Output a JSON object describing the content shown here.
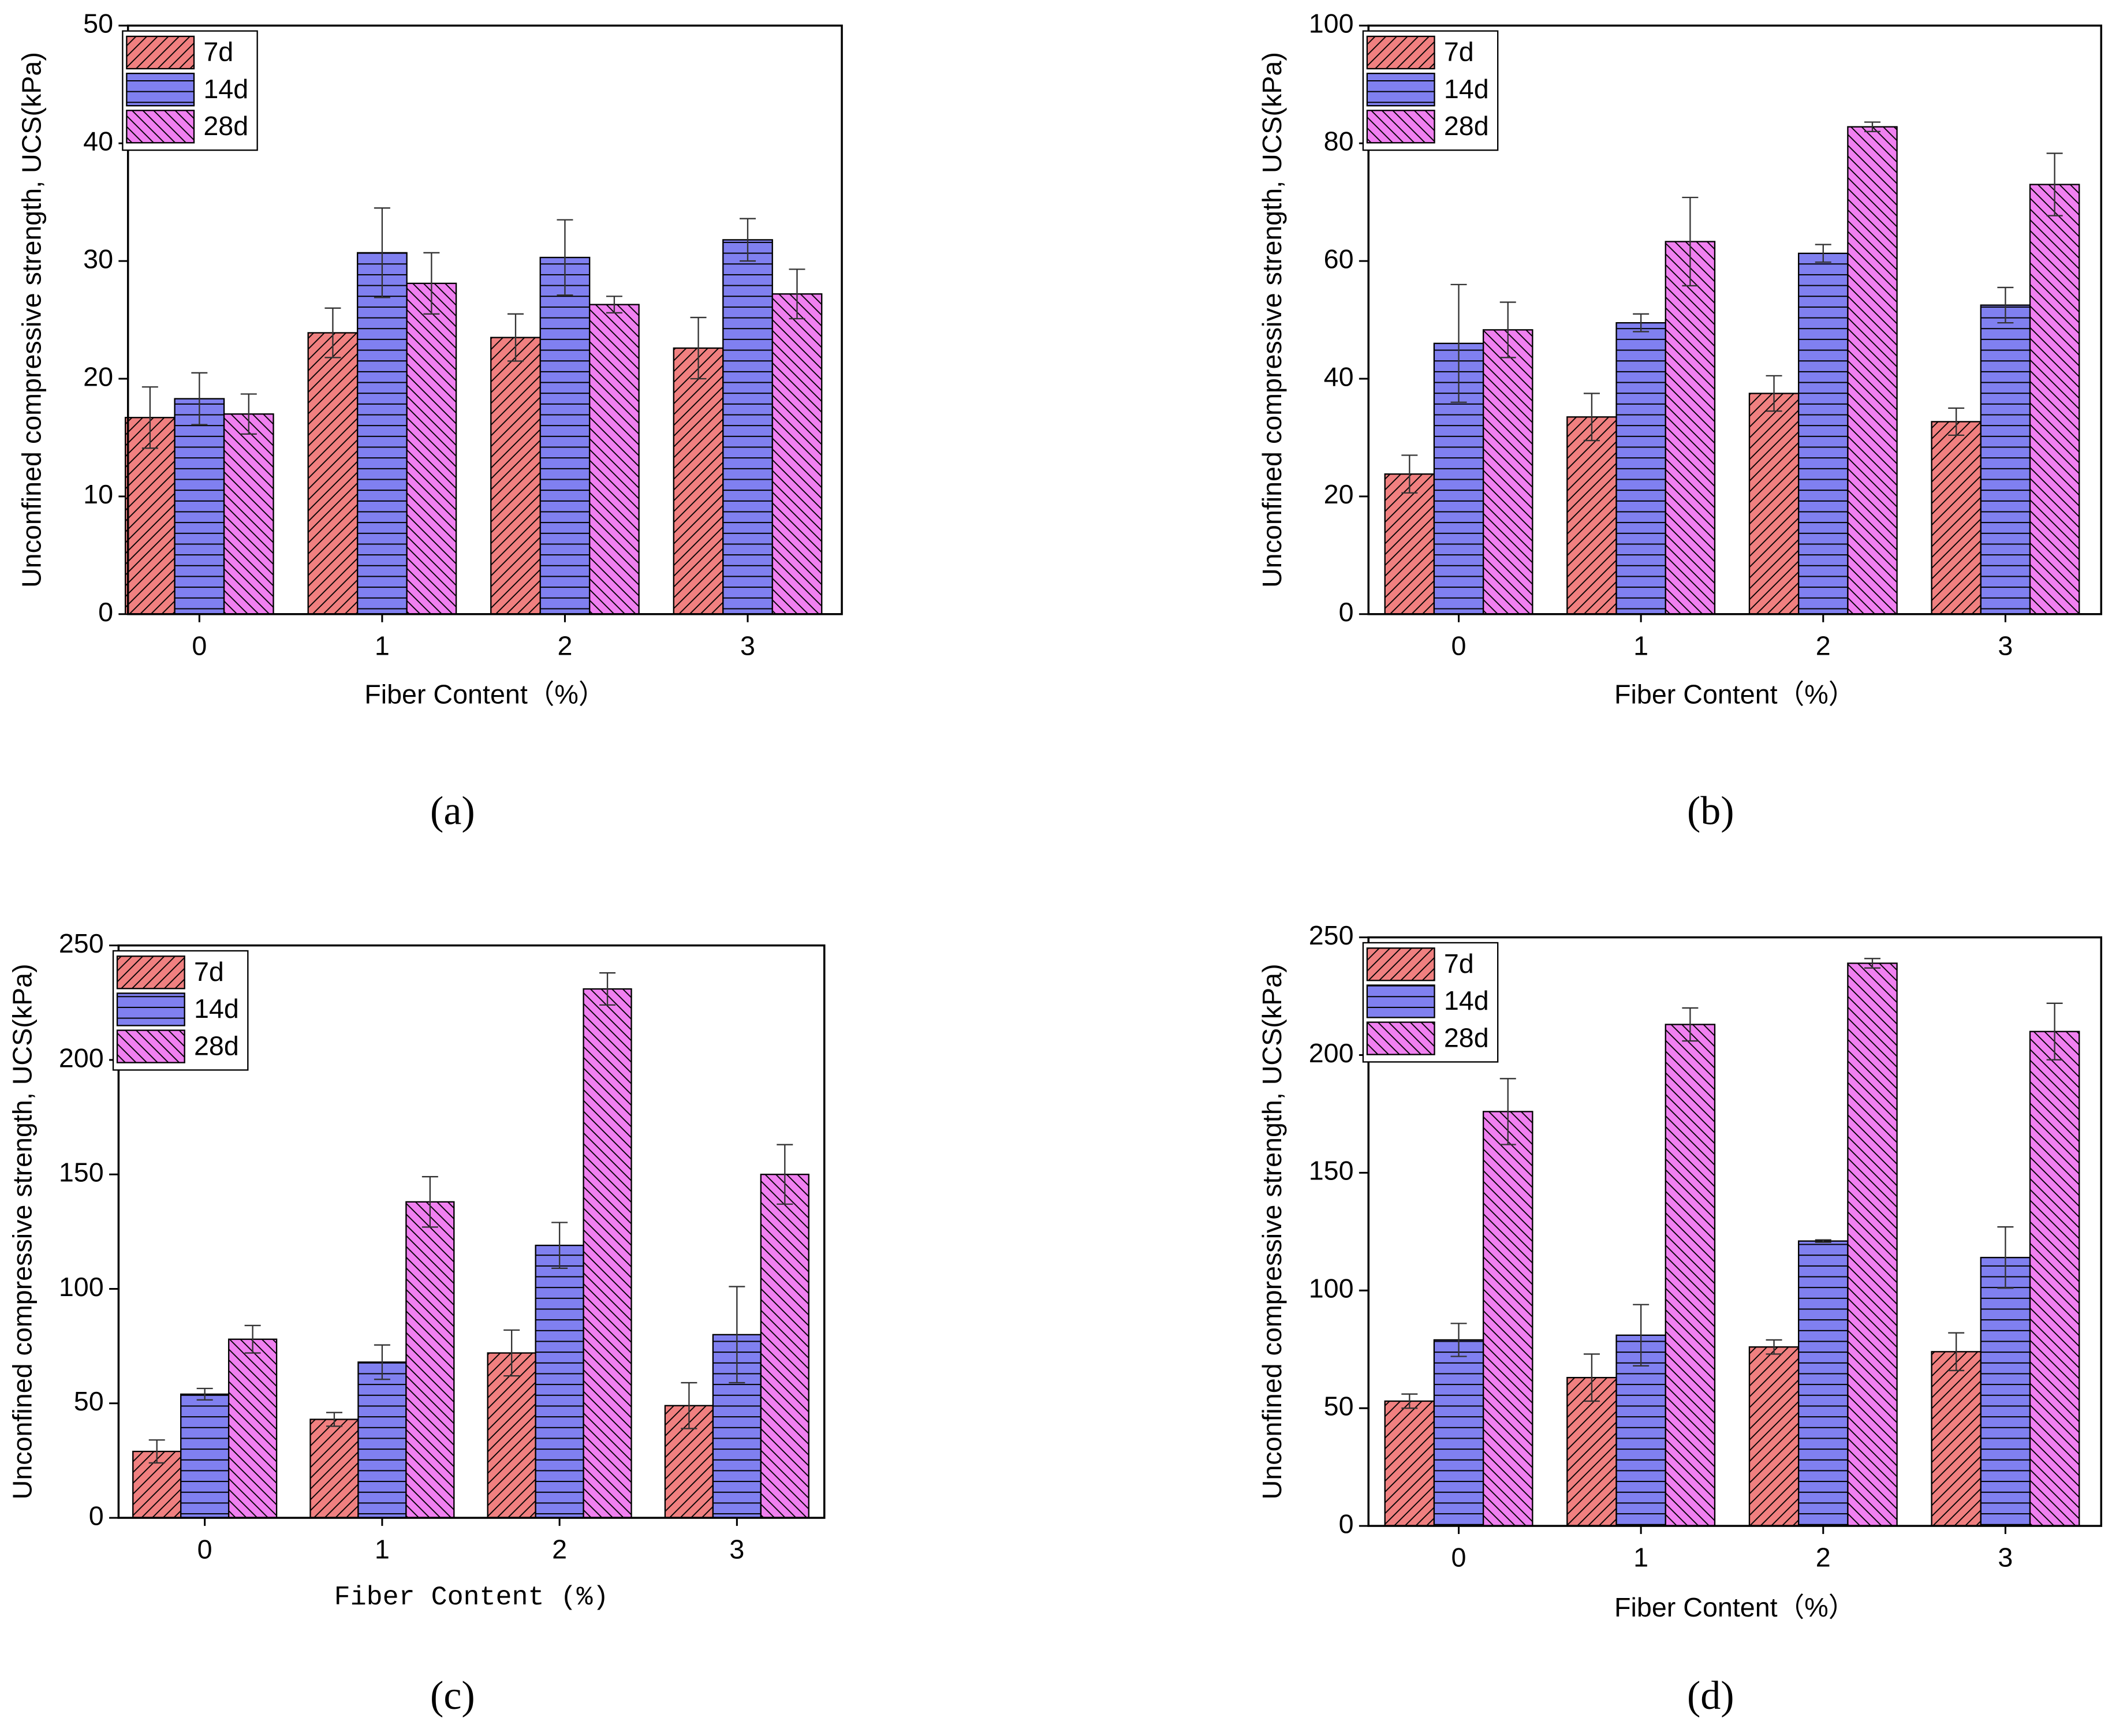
{
  "chart_data": [
    {
      "type": "bar",
      "panel_label": "(a)",
      "xlabel": "Fiber Content（%）",
      "ylabel": "Unconfined compressive strength, UCS(kPa)",
      "categories": [
        "0",
        "1",
        "2",
        "3"
      ],
      "ylim": [
        0,
        50
      ],
      "yticks": [
        0,
        10,
        20,
        30,
        40,
        50
      ],
      "series": [
        {
          "name": "7d",
          "color": "#f08080",
          "hatch": "forward",
          "values": [
            16.7,
            23.9,
            23.5,
            22.6
          ],
          "errors": [
            2.6,
            2.1,
            2.0,
            2.6
          ]
        },
        {
          "name": "14d",
          "color": "#8080f0",
          "hatch": "horizontal",
          "values": [
            18.3,
            30.7,
            30.3,
            31.8
          ],
          "errors": [
            2.2,
            3.8,
            3.2,
            1.8
          ]
        },
        {
          "name": "28d",
          "color": "#f080f0",
          "hatch": "backward",
          "values": [
            17.0,
            28.1,
            26.3,
            27.2
          ],
          "errors": [
            1.7,
            2.6,
            0.7,
            2.1
          ]
        }
      ]
    },
    {
      "type": "bar",
      "panel_label": "(b)",
      "xlabel": "Fiber Content（%）",
      "ylabel": "Unconfined compressive strength, UCS(kPa)",
      "categories": [
        "0",
        "1",
        "2",
        "3"
      ],
      "ylim": [
        0,
        100
      ],
      "yticks": [
        0,
        20,
        40,
        60,
        80,
        100
      ],
      "series": [
        {
          "name": "7d",
          "color": "#f08080",
          "hatch": "forward",
          "values": [
            23.8,
            33.5,
            37.5,
            32.7
          ],
          "errors": [
            3.2,
            4.0,
            3.0,
            2.3
          ]
        },
        {
          "name": "14d",
          "color": "#8080f0",
          "hatch": "horizontal",
          "values": [
            46.0,
            49.5,
            61.3,
            52.5
          ],
          "errors": [
            10.0,
            1.5,
            1.5,
            3.0
          ]
        },
        {
          "name": "28d",
          "color": "#f080f0",
          "hatch": "backward",
          "values": [
            48.3,
            63.3,
            82.8,
            73.0
          ],
          "errors": [
            4.7,
            7.5,
            0.8,
            5.3
          ]
        }
      ]
    },
    {
      "type": "bar",
      "panel_label": "(c)",
      "xlabel": "Fiber Content (%)",
      "ylabel": "Unconfined compressive strength, UCS(kPa)",
      "categories": [
        "0",
        "1",
        "2",
        "3"
      ],
      "ylim": [
        0,
        250
      ],
      "yticks": [
        0,
        50,
        100,
        150,
        200,
        250
      ],
      "series": [
        {
          "name": "7d",
          "color": "#f08080",
          "hatch": "forward",
          "values": [
            29,
            43,
            72,
            49
          ],
          "errors": [
            5,
            3,
            10,
            10
          ]
        },
        {
          "name": "14d",
          "color": "#8080f0",
          "hatch": "horizontal",
          "values": [
            54,
            68,
            119,
            80
          ],
          "errors": [
            2.5,
            7.5,
            10,
            21
          ]
        },
        {
          "name": "28d",
          "color": "#f080f0",
          "hatch": "backward",
          "values": [
            78,
            138,
            231,
            150
          ],
          "errors": [
            6,
            11,
            7,
            13
          ]
        }
      ]
    },
    {
      "type": "bar",
      "panel_label": "(d)",
      "xlabel": "Fiber Content（%）",
      "ylabel": "Unconfined compressive strength, UCS(kPa)",
      "categories": [
        "0",
        "1",
        "2",
        "3"
      ],
      "ylim": [
        0,
        250
      ],
      "yticks": [
        0,
        50,
        100,
        150,
        200,
        250
      ],
      "series": [
        {
          "name": "7d",
          "color": "#f08080",
          "hatch": "forward",
          "values": [
            53,
            63,
            76,
            74
          ],
          "errors": [
            3,
            10,
            3,
            8
          ]
        },
        {
          "name": "14d",
          "color": "#8080f0",
          "hatch": "horizontal",
          "values": [
            79,
            81,
            121,
            114
          ],
          "errors": [
            7,
            13,
            0.5,
            13
          ]
        },
        {
          "name": "28d",
          "color": "#f080f0",
          "hatch": "backward",
          "values": [
            176,
            213,
            239,
            210
          ],
          "errors": [
            14,
            7,
            2,
            12
          ]
        }
      ]
    }
  ]
}
